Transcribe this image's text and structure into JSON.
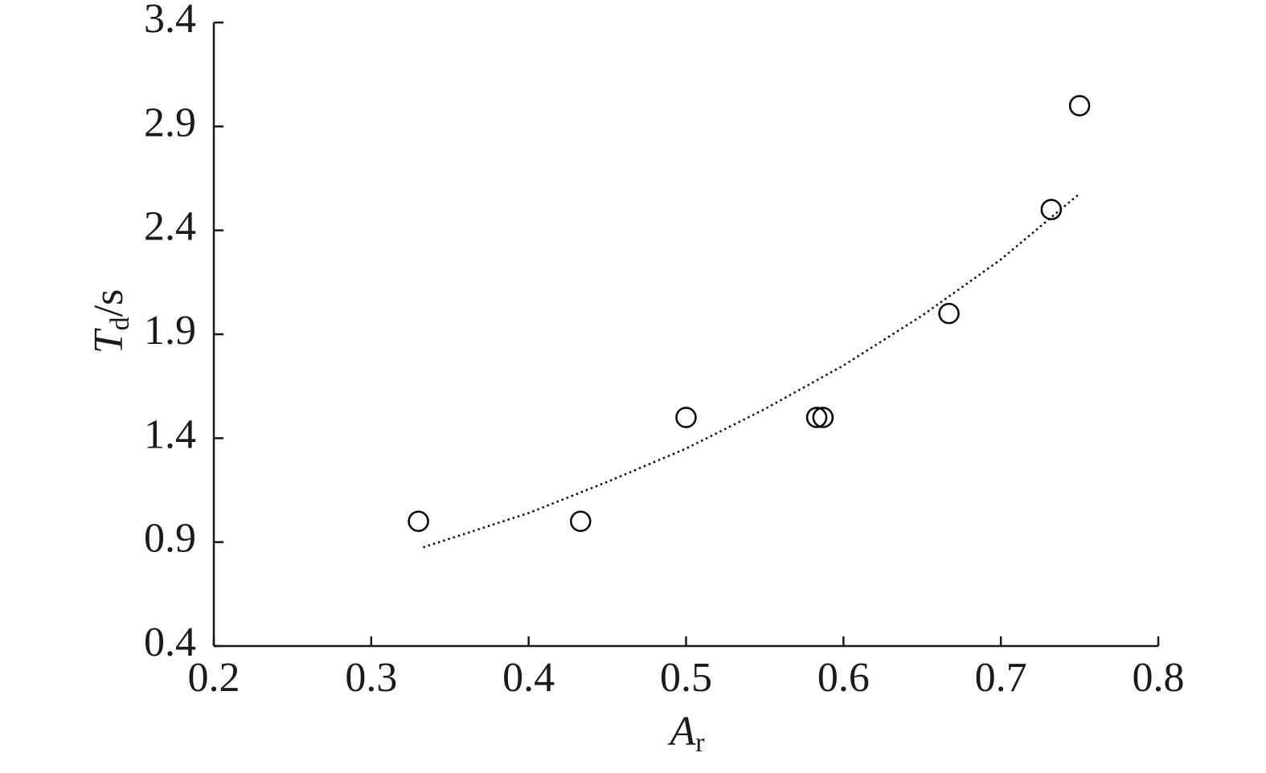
{
  "chart_data": {
    "type": "scatter",
    "x": [
      0.33,
      0.433,
      0.5,
      0.583,
      0.587,
      0.667,
      0.732,
      0.75
    ],
    "values": [
      1.0,
      1.0,
      1.5,
      1.5,
      1.5,
      2.0,
      2.5,
      3.0
    ],
    "color": "#000000",
    "trend": {
      "x": [
        0.333,
        0.4,
        0.45,
        0.5,
        0.55,
        0.6,
        0.65,
        0.7,
        0.749
      ],
      "values": [
        0.875,
        1.04,
        1.19,
        1.35,
        1.54,
        1.75,
        1.99,
        2.26,
        2.57
      ],
      "style": "dotted",
      "color": "#000000"
    },
    "xlabel": [
      "A",
      "r"
    ],
    "ylabel": [
      "T",
      "d",
      "/s"
    ],
    "xlim": [
      0.2,
      0.8
    ],
    "xticks": [
      0.2,
      0.3,
      0.4,
      0.5,
      0.6,
      0.7,
      0.8
    ],
    "ylim": [
      0.4,
      3.4
    ],
    "yticks": [
      0.4,
      0.9,
      1.4,
      1.9,
      2.4,
      2.9,
      3.4
    ],
    "grid": false
  }
}
